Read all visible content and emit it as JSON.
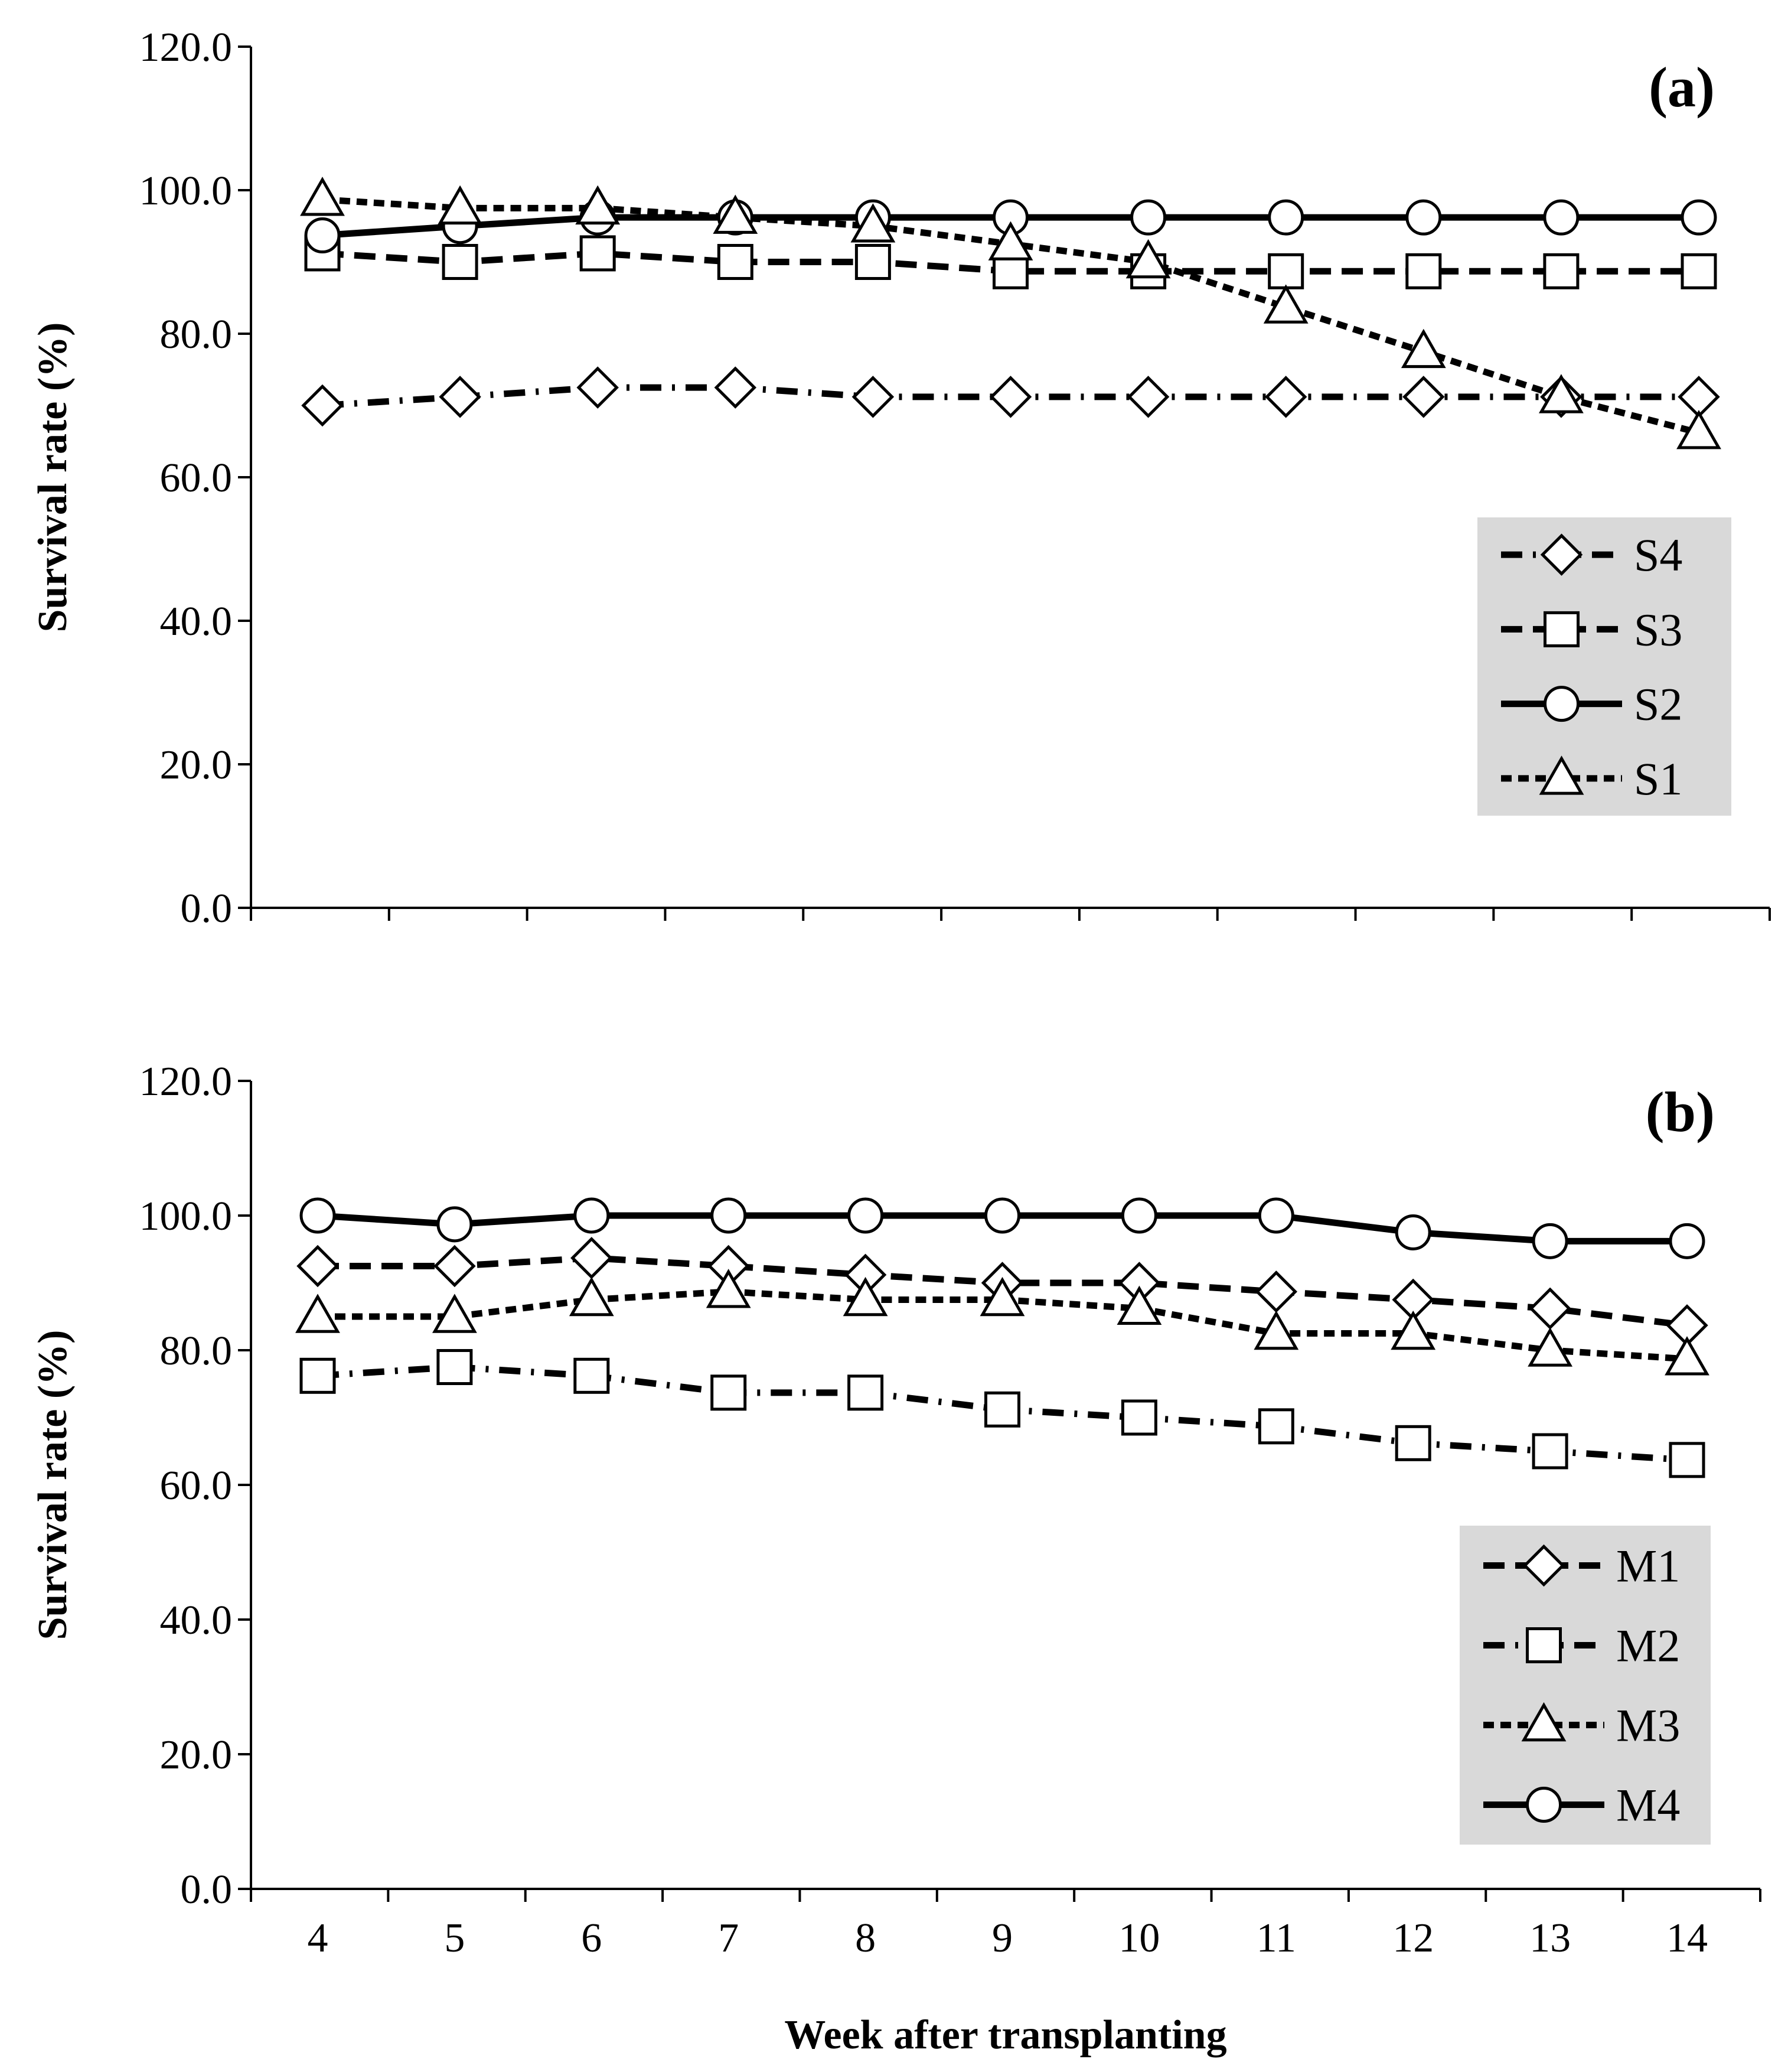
{
  "chart_data": [
    {
      "type": "line",
      "panel_label": "(a)",
      "ylabel": "Survival rate (%)",
      "xlabel": "",
      "ylim": [
        0,
        120
      ],
      "y_ticks": [
        "0.0",
        "20.0",
        "40.0",
        "60.0",
        "80.0",
        "100.0",
        "120.0"
      ],
      "x": [
        4,
        5,
        6,
        7,
        8,
        9,
        10,
        11,
        12,
        13,
        14
      ],
      "x_tick_labels": [],
      "legend_position": "right-middle",
      "series": [
        {
          "name": "S4",
          "marker": "diamond",
          "line_style": "dash-dot",
          "values": [
            70.0,
            71.2,
            72.5,
            72.5,
            71.2,
            71.2,
            71.2,
            71.2,
            71.2,
            71.2,
            71.2
          ]
        },
        {
          "name": "S3",
          "marker": "square",
          "line_style": "long-dash",
          "values": [
            91.2,
            90.0,
            91.2,
            90.0,
            90.0,
            88.7,
            88.7,
            88.7,
            88.7,
            88.7,
            88.7
          ]
        },
        {
          "name": "S2",
          "marker": "circle",
          "line_style": "solid",
          "values": [
            93.7,
            95.0,
            96.2,
            96.2,
            96.2,
            96.2,
            96.2,
            96.2,
            96.2,
            96.2,
            96.2
          ]
        },
        {
          "name": "S1",
          "marker": "triangle",
          "line_style": "short-dash",
          "values": [
            98.7,
            97.5,
            97.5,
            96.2,
            95.0,
            92.5,
            90.0,
            83.7,
            77.5,
            71.2,
            66.2
          ]
        }
      ]
    },
    {
      "type": "line",
      "panel_label": "(b)",
      "ylabel": "Survival rate (%)",
      "xlabel": "Week after transplanting",
      "ylim": [
        0,
        120
      ],
      "y_ticks": [
        "0.0",
        "20.0",
        "40.0",
        "60.0",
        "80.0",
        "100.0",
        "120.0"
      ],
      "x": [
        4,
        5,
        6,
        7,
        8,
        9,
        10,
        11,
        12,
        13,
        14
      ],
      "x_tick_labels": [
        "4",
        "5",
        "6",
        "7",
        "8",
        "9",
        "10",
        "11",
        "12",
        "13",
        "14"
      ],
      "legend_position": "bottom-right",
      "series": [
        {
          "name": "M1",
          "marker": "diamond",
          "line_style": "long-dash",
          "values": [
            92.5,
            92.5,
            93.7,
            92.5,
            91.2,
            90.0,
            90.0,
            88.7,
            87.5,
            86.2,
            83.7
          ]
        },
        {
          "name": "M2",
          "marker": "square",
          "line_style": "dash-dot",
          "values": [
            76.2,
            77.5,
            76.2,
            73.7,
            73.7,
            71.2,
            70.0,
            68.7,
            66.2,
            65.0,
            63.7
          ]
        },
        {
          "name": "M3",
          "marker": "triangle",
          "line_style": "short-dash",
          "values": [
            85.0,
            85.0,
            87.5,
            88.7,
            87.5,
            87.5,
            86.2,
            82.5,
            82.5,
            80.0,
            78.7
          ]
        },
        {
          "name": "M4",
          "marker": "circle",
          "line_style": "solid",
          "values": [
            100.0,
            98.7,
            100.0,
            100.0,
            100.0,
            100.0,
            100.0,
            100.0,
            97.5,
            96.2,
            96.2
          ]
        }
      ]
    }
  ]
}
